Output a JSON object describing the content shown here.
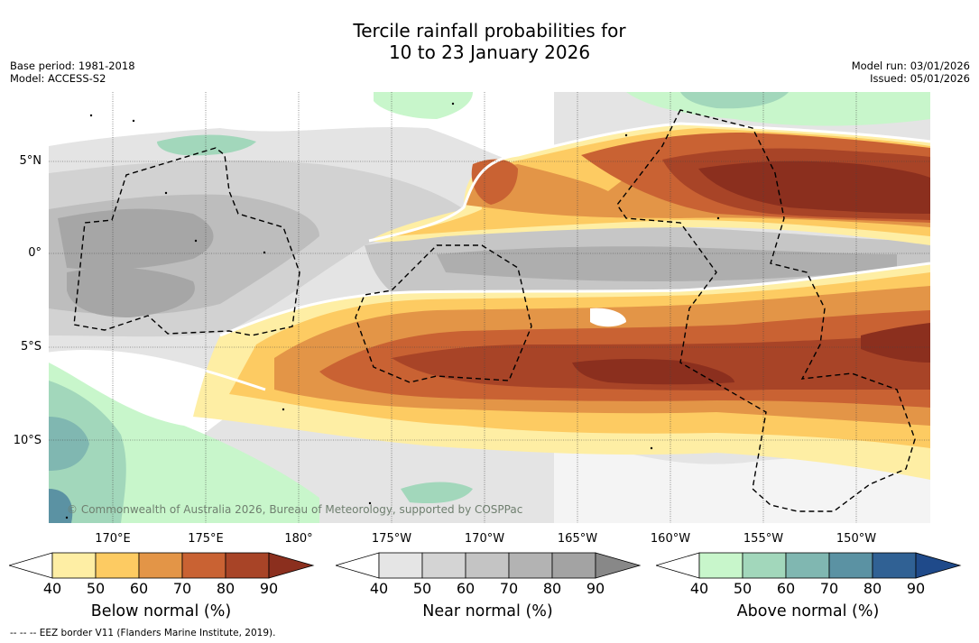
{
  "title": {
    "line1": "Tercile rainfall probabilities for",
    "line2": "10 to 23 January 2026"
  },
  "meta_left": {
    "base_period": "Base period: 1981-2018",
    "model": "Model: ACCESS-S2"
  },
  "meta_right": {
    "model_run": "Model run: 03/01/2026",
    "issued": "Issued: 05/01/2026"
  },
  "map": {
    "lat_labels": [
      "5°N",
      "0°",
      "5°S",
      "10°S"
    ],
    "lon_labels": [
      "170°E",
      "175°E",
      "180°",
      "175°W",
      "170°W",
      "165°W",
      "160°W",
      "155°W",
      "150°W"
    ],
    "copyright": "© Commonwealth of Australia 2026, Bureau of Meteorology, supported by COSPPac",
    "layer_legend": "probability shading by tercile category",
    "boundary_name": "EEZ border V11"
  },
  "legends": {
    "below": {
      "title": "Below normal (%)",
      "ticks": [
        "40",
        "50",
        "60",
        "70",
        "80",
        "90"
      ],
      "colors": [
        "#ffffff",
        "#feeea4",
        "#fdcb62",
        "#e39547",
        "#c96233",
        "#a84427",
        "#8b2f1e"
      ]
    },
    "near": {
      "title": "Near normal (%)",
      "ticks": [
        "40",
        "50",
        "60",
        "70",
        "80",
        "90"
      ],
      "colors": [
        "#ffffff",
        "#e5e5e5",
        "#d4d4d4",
        "#c4c4c4",
        "#b3b3b3",
        "#a3a3a3",
        "#888888"
      ]
    },
    "above": {
      "title": "Above normal (%)",
      "ticks": [
        "40",
        "50",
        "60",
        "70",
        "80",
        "90"
      ],
      "colors": [
        "#ffffff",
        "#c8f6cb",
        "#a2d7bb",
        "#80b7b1",
        "#5b92a3",
        "#306194",
        "#1f4a8a"
      ]
    }
  },
  "footnote": "-- -- -- EEZ border V11 (Flanders Marine Institute, 2019)."
}
